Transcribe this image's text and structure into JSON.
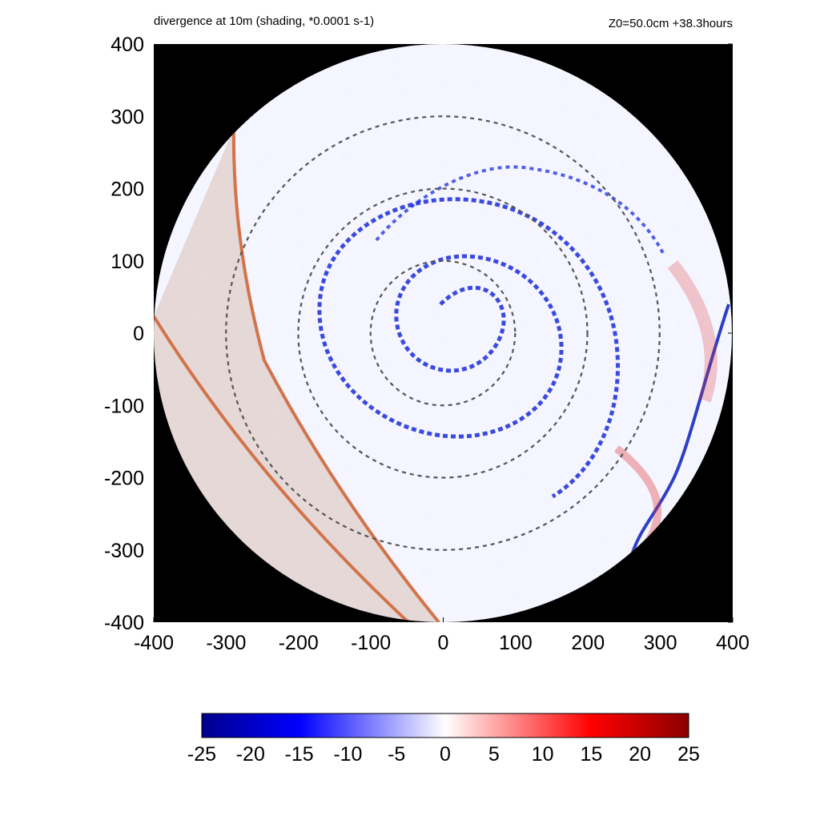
{
  "header": {
    "title_left": "divergence at 10m (shading, *0.0001 s-1)",
    "title_right": "Z0=50.0cm  +38.3hours"
  },
  "chart_data": {
    "type": "heatmap",
    "title": "divergence at 10m (shading, *0.0001 s-1)",
    "annotation": "Z0=50.0cm  +38.3hours",
    "xlim": [
      -400,
      400
    ],
    "ylim": [
      -400,
      400
    ],
    "x_ticks": [
      -400,
      -300,
      -200,
      -100,
      0,
      100,
      200,
      300,
      400
    ],
    "y_ticks": [
      400,
      300,
      200,
      100,
      0,
      -100,
      -200,
      -300,
      -400
    ],
    "domain_radius": 400,
    "dashed_rings_radius": [
      100,
      200,
      300
    ],
    "colorbar": {
      "range": [
        -25,
        25
      ],
      "ticks": [
        -25,
        -20,
        -15,
        -10,
        -5,
        0,
        5,
        10,
        15,
        20,
        25
      ],
      "colors": [
        "#00008b",
        "#0000ff",
        "#ffffff",
        "#ff0000",
        "#8b0000"
      ]
    },
    "masked_region_color": "#000000"
  }
}
